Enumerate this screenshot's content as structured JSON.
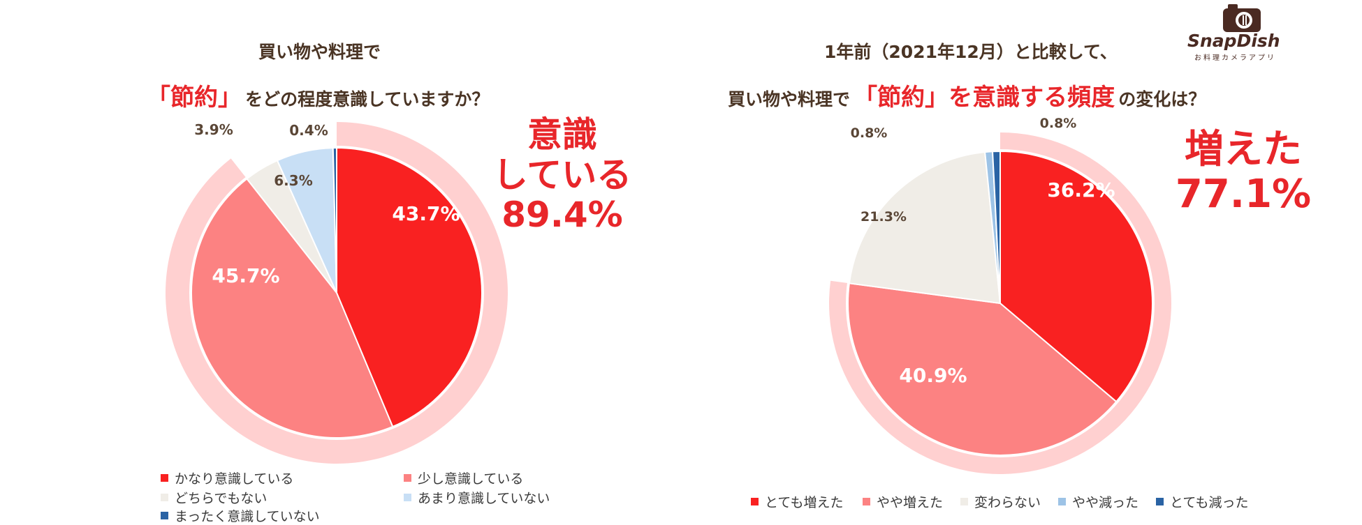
{
  "brand": {
    "name": "SnapDish",
    "tagline": "お料理カメラアプリ"
  },
  "chart_data": [
    {
      "type": "pie",
      "title_line1": "買い物や料理で",
      "title_emphasis": "「節約」",
      "title_line2": "をどの程度意識していますか？",
      "callout": {
        "line1": "意識",
        "line2": "している",
        "value": "89.4%"
      },
      "slices": [
        {
          "label": "かなり意識している",
          "value": 43.7,
          "display": "43.7%",
          "color": "#f92121"
        },
        {
          "label": "少し意識している",
          "value": 45.7,
          "display": "45.7%",
          "color": "#fc8282"
        },
        {
          "label": "どちらでもない",
          "value": 3.9,
          "display": "3.9%",
          "color": "#f0ede7"
        },
        {
          "label": "あまり意識していない",
          "value": 6.3,
          "display": "6.3%",
          "color": "#c8dff5"
        },
        {
          "label": "まったく意識していない",
          "value": 0.4,
          "display": "0.4%",
          "color": "#2a63a4"
        }
      ],
      "highlight_ring_color": "#ffd0d0"
    },
    {
      "type": "pie",
      "title_line1": "1年前（2021年12月）と比較して、",
      "title_prefix": "買い物や料理で",
      "title_emphasis": "「節約」を意識する頻度",
      "title_suffix": "の変化は？",
      "callout": {
        "line1": "増えた",
        "value": "77.1%"
      },
      "slices": [
        {
          "label": "とても増えた",
          "value": 36.2,
          "display": "36.2%",
          "color": "#f92121"
        },
        {
          "label": "やや増えた",
          "value": 40.9,
          "display": "40.9%",
          "color": "#fc8282"
        },
        {
          "label": "変わらない",
          "value": 21.3,
          "display": "21.3%",
          "color": "#f0ede7"
        },
        {
          "label": "やや減った",
          "value": 0.8,
          "display": "0.8%",
          "color": "#9dc3e6"
        },
        {
          "label": "とても減った",
          "value": 0.8,
          "display": "0.8%",
          "color": "#2a63a4"
        }
      ],
      "highlight_ring_color": "#ffd0d0"
    }
  ]
}
